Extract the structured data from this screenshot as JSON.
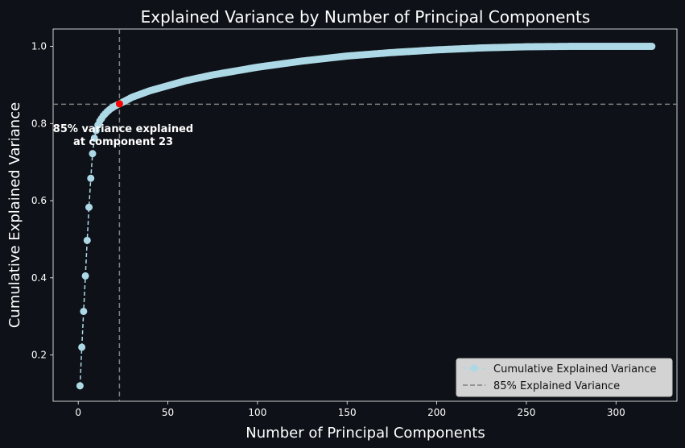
{
  "chart_data": {
    "type": "line",
    "title": "Explained Variance by Number of Principal Components",
    "xlabel": "Number of Principal Components",
    "ylabel": "Cumulative Explained Variance",
    "xlim": [
      -14,
      334
    ],
    "ylim": [
      0.08,
      1.045
    ],
    "xticks": [
      0,
      50,
      100,
      150,
      200,
      250,
      300
    ],
    "yticks": [
      0.2,
      0.4,
      0.6,
      0.8,
      1.0
    ],
    "grid": false,
    "legend_position": "bottom-right",
    "n_components": 320,
    "series": [
      {
        "name": "Cumulative Explained Variance",
        "color": "#add8e6",
        "marker": "circle",
        "line": "dashed",
        "anchor_points": [
          [
            1,
            0.12
          ],
          [
            2,
            0.22
          ],
          [
            3,
            0.313
          ],
          [
            4,
            0.405
          ],
          [
            5,
            0.497
          ],
          [
            6,
            0.583
          ],
          [
            7,
            0.658
          ],
          [
            8,
            0.722
          ],
          [
            9,
            0.762
          ],
          [
            10,
            0.782
          ],
          [
            11,
            0.796
          ],
          [
            12,
            0.806
          ],
          [
            14,
            0.82
          ],
          [
            16,
            0.83
          ],
          [
            18,
            0.838
          ],
          [
            20,
            0.844
          ],
          [
            23,
            0.851
          ],
          [
            30,
            0.868
          ],
          [
            40,
            0.885
          ],
          [
            50,
            0.898
          ],
          [
            60,
            0.911
          ],
          [
            75,
            0.926
          ],
          [
            100,
            0.946
          ],
          [
            125,
            0.962
          ],
          [
            150,
            0.975
          ],
          [
            175,
            0.984
          ],
          [
            200,
            0.991
          ],
          [
            225,
            0.996
          ],
          [
            250,
            0.999
          ],
          [
            275,
            1.0
          ],
          [
            320,
            1.0
          ]
        ]
      },
      {
        "name": "85% Explained Variance",
        "color": "#808080",
        "line": "dashed",
        "y": 0.85
      }
    ],
    "vertical_line": {
      "x": 23,
      "color": "#808080",
      "line": "dashed"
    },
    "highlight_point": {
      "x": 23,
      "y": 0.851,
      "color": "#ff0000"
    },
    "annotation": {
      "lines": [
        "85% variance explained",
        "at component 23"
      ],
      "x": 23,
      "y": 0.77
    }
  }
}
